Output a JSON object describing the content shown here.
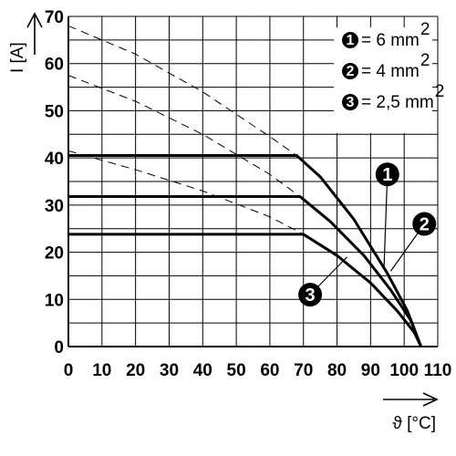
{
  "chart_data": {
    "type": "line",
    "xlabel": "ϑ [°C]",
    "ylabel": "I [A]",
    "xlim": [
      0,
      110
    ],
    "ylim": [
      0,
      70
    ],
    "x_ticks": [
      "0",
      "10",
      "20",
      "30",
      "40",
      "50",
      "60",
      "70",
      "80",
      "90",
      "100",
      "110"
    ],
    "y_ticks": [
      "0",
      "10",
      "20",
      "30",
      "40",
      "50",
      "60",
      "70"
    ],
    "grid": true,
    "legend_position": "top-right",
    "legend": [
      {
        "marker": "1",
        "label": "= 6 mm",
        "sup": "2"
      },
      {
        "marker": "2",
        "label": "= 4 mm",
        "sup": "2"
      },
      {
        "marker": "3",
        "label": "= 2,5 mm",
        "sup": "2"
      }
    ],
    "series": [
      {
        "marker": "1",
        "style": "solid",
        "points": [
          [
            0,
            40.5
          ],
          [
            68,
            40.5
          ],
          [
            75,
            36
          ],
          [
            85,
            27
          ],
          [
            95,
            15.5
          ],
          [
            101,
            7.5
          ],
          [
            105,
            0
          ]
        ]
      },
      {
        "marker": "2",
        "style": "solid",
        "points": [
          [
            0,
            31.8
          ],
          [
            69,
            31.8
          ],
          [
            78,
            26.5
          ],
          [
            88,
            19.3
          ],
          [
            96,
            12
          ],
          [
            102,
            5.5
          ],
          [
            105,
            0
          ]
        ]
      },
      {
        "marker": "3",
        "style": "solid",
        "points": [
          [
            0,
            23.8
          ],
          [
            70,
            23.8
          ],
          [
            80,
            19.3
          ],
          [
            90,
            13.5
          ],
          [
            98,
            7.5
          ],
          [
            103,
            3
          ],
          [
            105,
            0
          ]
        ]
      },
      {
        "marker": "1",
        "style": "dashed",
        "points": [
          [
            0,
            68
          ],
          [
            20,
            62
          ],
          [
            40,
            54
          ],
          [
            60,
            44.5
          ],
          [
            68,
            40.5
          ]
        ]
      },
      {
        "marker": "2",
        "style": "dashed",
        "points": [
          [
            0,
            57.5
          ],
          [
            20,
            52
          ],
          [
            40,
            45
          ],
          [
            60,
            36.5
          ],
          [
            69,
            31.8
          ]
        ]
      },
      {
        "marker": "3",
        "style": "dashed",
        "points": [
          [
            0,
            41.5
          ],
          [
            20,
            37.5
          ],
          [
            40,
            33
          ],
          [
            60,
            27.5
          ],
          [
            70,
            23.8
          ]
        ]
      }
    ],
    "callouts": [
      {
        "marker": "1",
        "at": [
          94,
          17
        ],
        "badge": [
          95,
          36.5
        ]
      },
      {
        "marker": "2",
        "at": [
          96,
          16
        ],
        "badge": [
          106,
          26
        ]
      },
      {
        "marker": "3",
        "at": [
          83,
          19
        ],
        "badge": [
          72,
          11
        ]
      }
    ]
  }
}
